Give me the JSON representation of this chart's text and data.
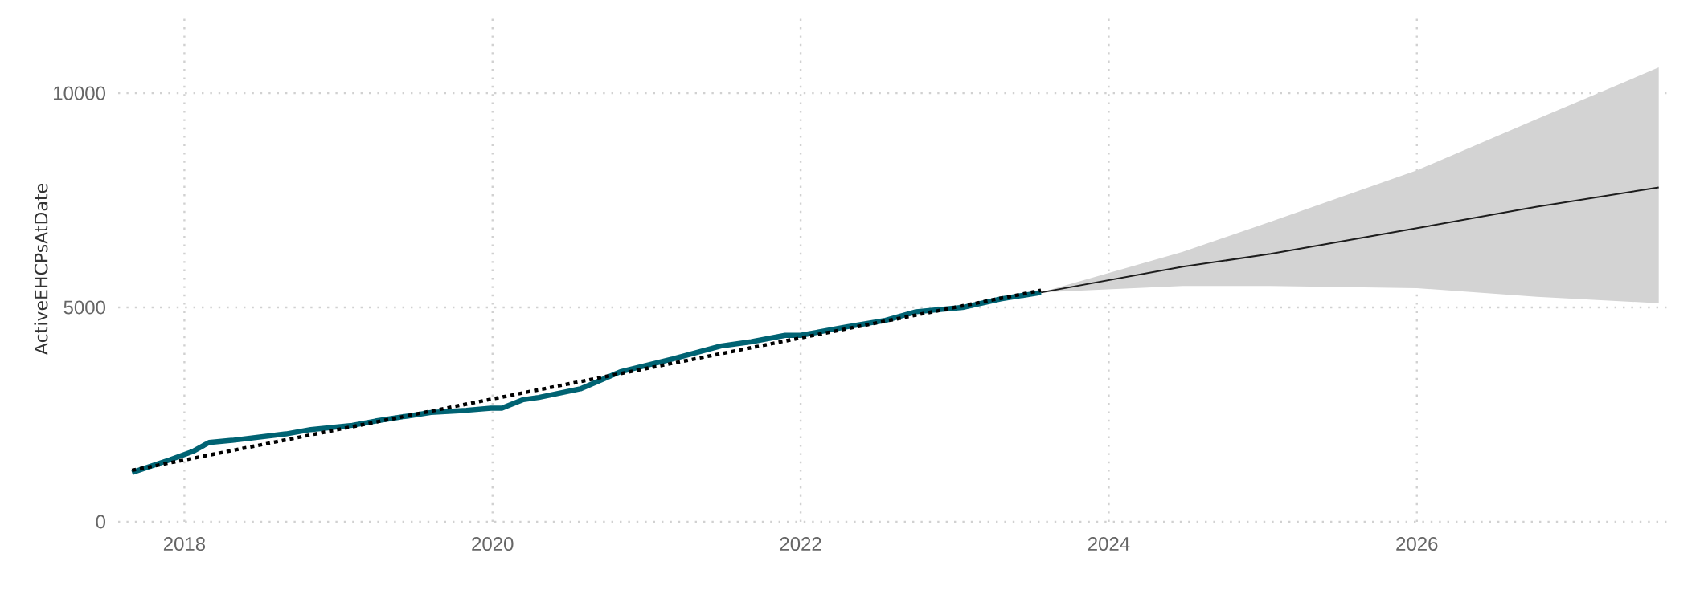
{
  "chart_data": {
    "type": "line",
    "ylabel": "ActiveEHCPsAtDate",
    "xlim": [
      2017.57,
      2027.65
    ],
    "ylim": [
      0,
      11800
    ],
    "xticks": [
      2018,
      2020,
      2022,
      2024,
      2026
    ],
    "yticks": [
      0,
      5000,
      10000
    ],
    "grid": true,
    "series": [
      {
        "color": "#1d1d1d",
        "line_style": "solid",
        "x": [
          2023.56,
          2024.48,
          2025.05,
          2026.0,
          2026.78,
          2027.57
        ],
        "values": [
          5350,
          5950,
          6250,
          6850,
          7350,
          7800
        ],
        "lower": [
          5350,
          5500,
          5500,
          5450,
          5250,
          5100
        ],
        "upper": [
          5350,
          6300,
          7000,
          8200,
          9400,
          10600
        ]
      },
      {
        "color": "#006373",
        "line_style": "solid",
        "x": [
          2017.66,
          2017.91,
          2018.06,
          2018.16,
          2018.31,
          2018.66,
          2018.82,
          2019.09,
          2019.24,
          2019.42,
          2019.6,
          2019.83,
          2019.99,
          2020.06,
          2020.2,
          2020.3,
          2020.57,
          2020.83,
          2021.17,
          2021.48,
          2021.68,
          2021.9,
          2022.0,
          2022.3,
          2022.55,
          2022.75,
          2023.05,
          2023.3,
          2023.56
        ],
        "values": [
          1150,
          1450,
          1650,
          1850,
          1900,
          2050,
          2150,
          2250,
          2350,
          2450,
          2550,
          2600,
          2650,
          2650,
          2850,
          2900,
          3100,
          3500,
          3800,
          4100,
          4200,
          4350,
          4350,
          4550,
          4700,
          4900,
          5000,
          5200,
          5350
        ]
      },
      {
        "color": "#000000",
        "line_style": "dotted",
        "x": [
          2017.66,
          2023.56
        ],
        "values": [
          1200,
          5400
        ]
      }
    ]
  }
}
